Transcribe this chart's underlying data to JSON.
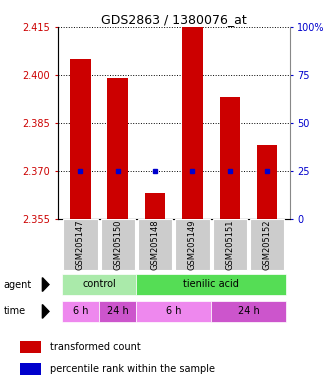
{
  "title": "GDS2863 / 1380076_at",
  "samples": [
    "GSM205147",
    "GSM205150",
    "GSM205148",
    "GSM205149",
    "GSM205151",
    "GSM205152"
  ],
  "bar_values": [
    2.405,
    2.399,
    2.363,
    2.416,
    2.393,
    2.378
  ],
  "bar_bottom": 2.355,
  "percentile_values": [
    25,
    25,
    25,
    25,
    25,
    25
  ],
  "ylim_left": [
    2.355,
    2.415
  ],
  "ylim_right": [
    0,
    100
  ],
  "yticks_left": [
    2.355,
    2.37,
    2.385,
    2.4,
    2.415
  ],
  "yticks_right": [
    0,
    25,
    50,
    75,
    100
  ],
  "bar_color": "#cc0000",
  "percentile_color": "#0000cc",
  "agent_labels": [
    {
      "text": "control",
      "start": 0,
      "end": 2,
      "color": "#aaeaaa"
    },
    {
      "text": "tienilic acid",
      "start": 2,
      "end": 6,
      "color": "#55dd55"
    }
  ],
  "time_labels": [
    {
      "text": "6 h",
      "start": 0,
      "end": 1,
      "color": "#ee88ee"
    },
    {
      "text": "24 h",
      "start": 1,
      "end": 2,
      "color": "#cc55cc"
    },
    {
      "text": "6 h",
      "start": 2,
      "end": 4,
      "color": "#ee88ee"
    },
    {
      "text": "24 h",
      "start": 4,
      "end": 6,
      "color": "#cc55cc"
    }
  ],
  "legend_items": [
    {
      "color": "#cc0000",
      "label": "transformed count"
    },
    {
      "color": "#0000cc",
      "label": "percentile rank within the sample"
    }
  ],
  "title_fontsize": 9,
  "tick_fontsize": 7,
  "sample_fontsize": 6,
  "label_fontsize": 7,
  "legend_fontsize": 7,
  "axis_color_left": "#cc0000",
  "axis_color_right": "#0000cc",
  "sample_bg": "#cccccc",
  "bar_width": 0.55
}
